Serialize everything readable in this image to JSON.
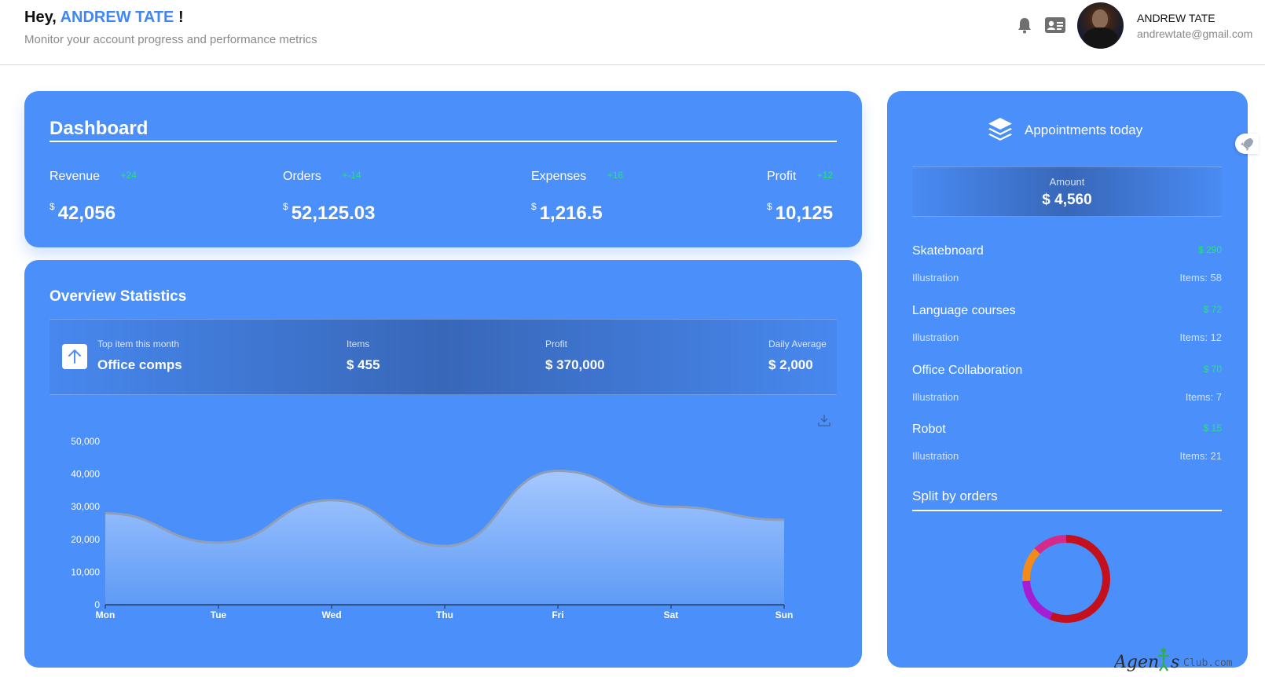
{
  "header": {
    "greeting_prefix": "Hey,",
    "greeting_name": "ANDREW TATE",
    "greeting_suffix": "!",
    "subtitle": "Monitor your account progress and performance metrics",
    "user_name": "ANDREW TATE",
    "user_email": "andrewtate@gmail.com",
    "icons": [
      "bell-icon",
      "id-card-icon",
      "avatar"
    ]
  },
  "dashboard": {
    "title": "Dashboard",
    "metrics": [
      {
        "label": "Revenue",
        "delta": "+24",
        "currency": "$",
        "value": "42,056"
      },
      {
        "label": "Orders",
        "delta": "+-14",
        "currency": "$",
        "value": "52,125.03"
      },
      {
        "label": "Expenses",
        "delta": "+18",
        "currency": "$",
        "value": "1,216.5"
      },
      {
        "label": "Profit",
        "delta": "+12",
        "currency": "$",
        "value": "10,125"
      }
    ]
  },
  "overview": {
    "title": "Overview Statistics",
    "top_item_label": "Top item this month",
    "top_item_value": "Office comps",
    "items_label": "Items",
    "items_value": "$ 455",
    "profit_label": "Profit",
    "profit_value": "$ 370,000",
    "daily_label": "Daily Average",
    "daily_value": "$ 2,000"
  },
  "chart_data": {
    "type": "area",
    "categories": [
      "Mon",
      "Tue",
      "Wed",
      "Thu",
      "Fri",
      "Sat",
      "Sun"
    ],
    "series": [
      {
        "values": [
          28000,
          19000,
          32000,
          18000,
          41000,
          30000,
          26000
        ]
      }
    ],
    "ylim": [
      0,
      50000
    ],
    "yticks": [
      "0",
      "10,000",
      "20,000",
      "30,000",
      "40,000",
      "50,000"
    ],
    "grid": false,
    "colors": {
      "line": "#8f9fb8",
      "fill_top": "#a6c8ff",
      "fill_bottom": "#5e9bf5"
    }
  },
  "appointments": {
    "title": "Appointments today",
    "amount_label": "Amount",
    "amount_value": "$ 4,560",
    "items": [
      {
        "name": "Skatebnoard",
        "price": "$ 290",
        "category": "Illustration",
        "items": "Items: 58"
      },
      {
        "name": "Language courses",
        "price": "$ 72",
        "category": "Illustration",
        "items": "Items: 12"
      },
      {
        "name": "Office Collaboration",
        "price": "$ 70",
        "category": "Illustration",
        "items": "Items: 7"
      },
      {
        "name": "Robot",
        "price": "$ 15",
        "category": "Illustration",
        "items": "Items: 21"
      }
    ]
  },
  "split": {
    "title": "Split by orders",
    "segments": [
      {
        "value": 0.56,
        "color": "#c40f1d"
      },
      {
        "value": 0.18,
        "color": "#a51ed6"
      },
      {
        "value": 0.13,
        "color": "#f28a1c"
      },
      {
        "value": 0.13,
        "color": "#d62a8a"
      }
    ]
  },
  "colors": {
    "accent": "#3f87f5",
    "panel": "#4b8ffa",
    "positive": "#23e57a"
  },
  "watermark": "Agents Club.com"
}
